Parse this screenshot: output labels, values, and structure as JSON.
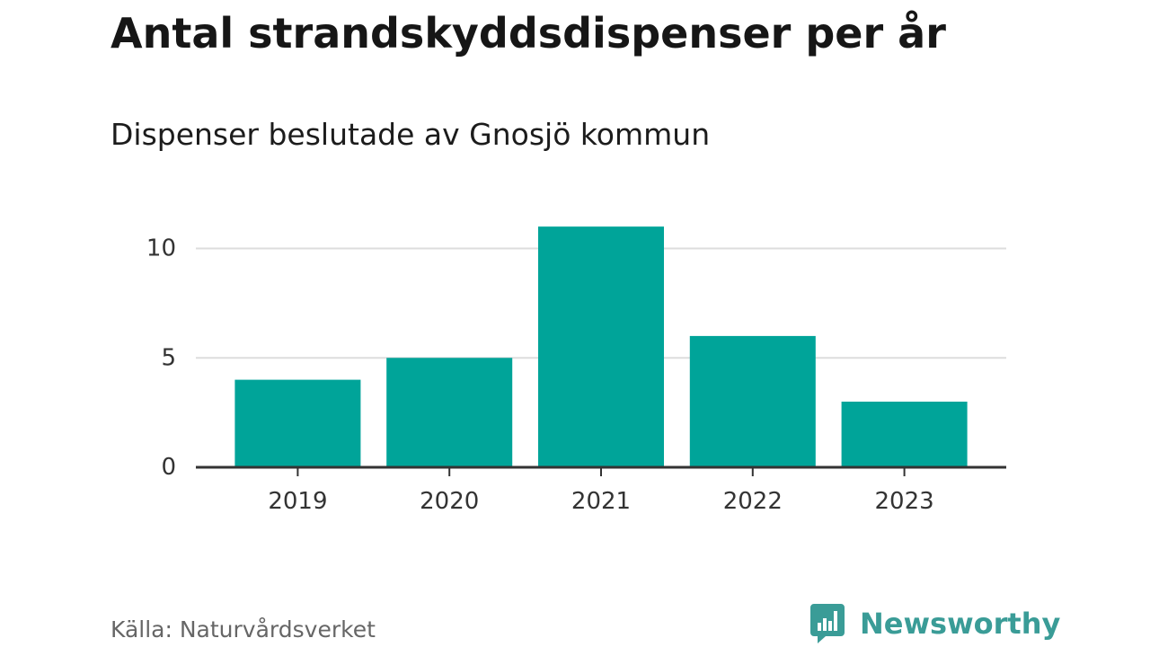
{
  "title": "Antal strandskyddsdispenser per år",
  "subtitle": "Dispenser beslutade av Gnosjö kommun",
  "source": "Källa: Naturvårdsverket",
  "brand": {
    "name": "Newsworthy",
    "icon": "newsworthy-logo-icon",
    "color": "#3a9c97"
  },
  "colors": {
    "bar": "#00a499",
    "grid": "#dddddd",
    "axis": "#333333",
    "tick_text": "#333333"
  },
  "chart_data": {
    "type": "bar",
    "title": "Antal strandskyddsdispenser per år",
    "subtitle": "Dispenser beslutade av Gnosjö kommun",
    "xlabel": "",
    "ylabel": "",
    "categories": [
      "2019",
      "2020",
      "2021",
      "2022",
      "2023"
    ],
    "values": [
      4,
      5,
      11,
      6,
      3
    ],
    "ylim": [
      0,
      11
    ],
    "yticks": [
      0,
      5,
      10
    ],
    "grid": true,
    "legend": "none"
  }
}
